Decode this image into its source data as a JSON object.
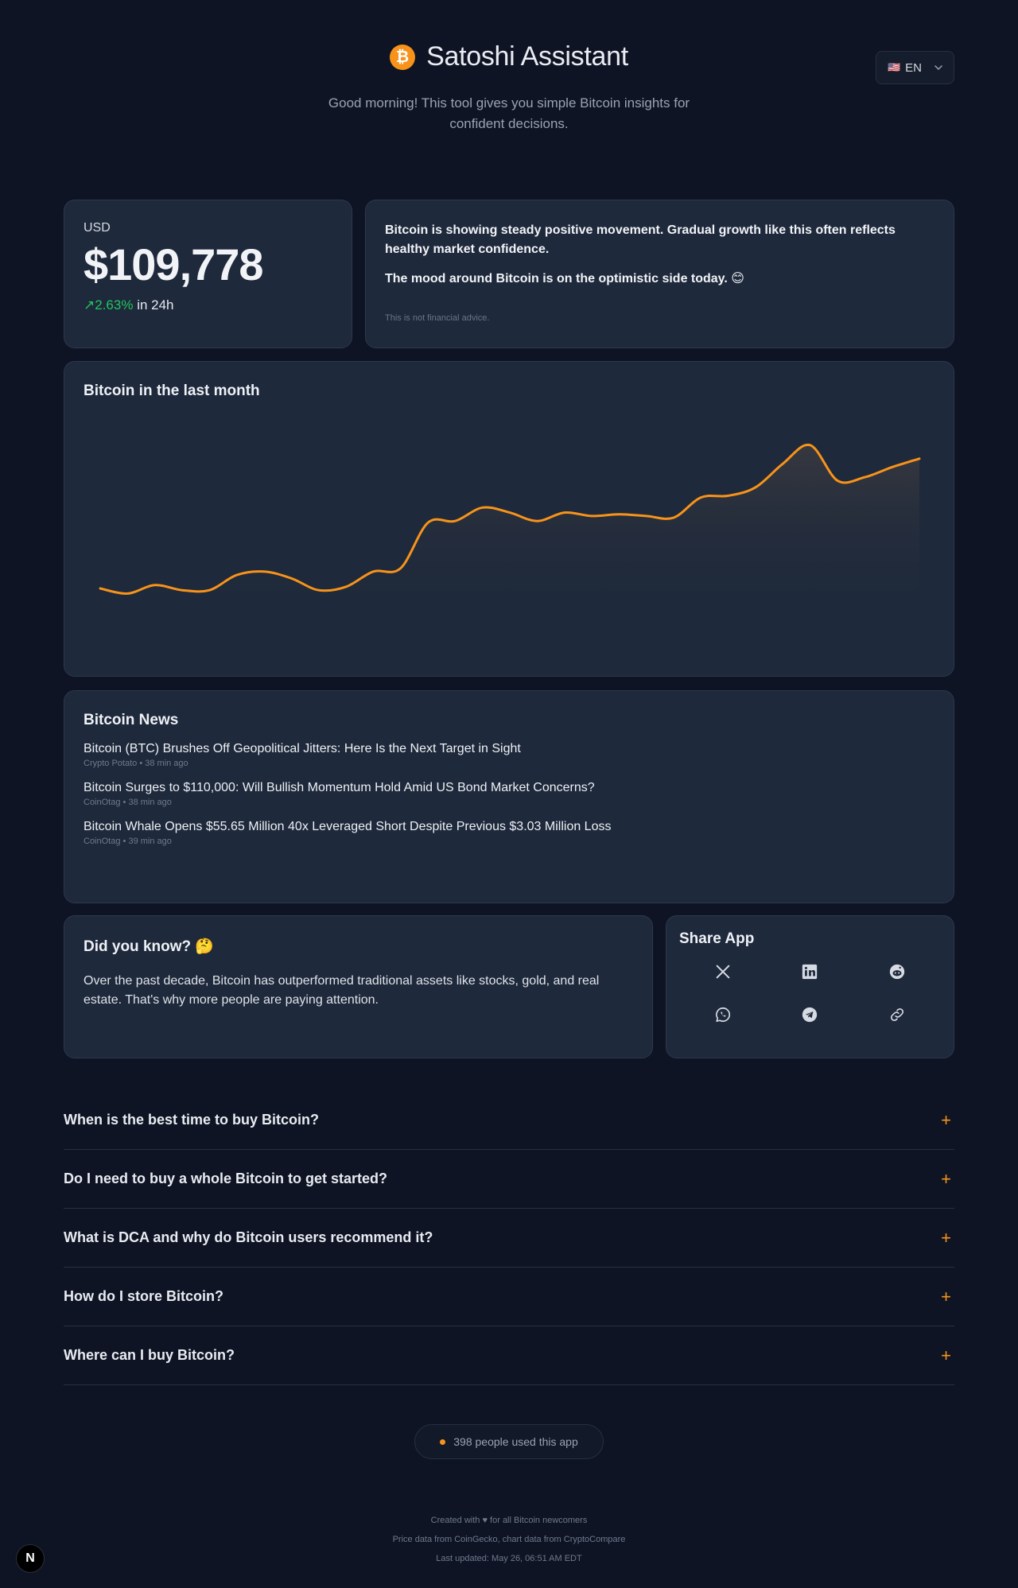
{
  "header": {
    "logo_glyph": "₿",
    "title": "Satoshi Assistant",
    "subtitle": "Good morning! This tool gives you simple Bitcoin insights for confident decisions.",
    "language": {
      "flag": "🇺🇸",
      "code": "EN"
    }
  },
  "price": {
    "currency": "USD",
    "value": "$109,778",
    "change": "↗2.63%",
    "period": "in 24h"
  },
  "insight": {
    "line1": "Bitcoin is showing steady positive movement. Gradual growth like this often reflects healthy market confidence.",
    "line2": "The mood around Bitcoin is on the optimistic side today. 😊",
    "disclaimer": "This is not financial advice."
  },
  "chart": {
    "title": "Bitcoin in the last month"
  },
  "chart_data": {
    "type": "area",
    "title": "Bitcoin in the last month",
    "line_color": "#f7931a",
    "values": [
      0.08,
      0.05,
      0.1,
      0.07,
      0.07,
      0.16,
      0.18,
      0.14,
      0.07,
      0.09,
      0.18,
      0.2,
      0.47,
      0.48,
      0.56,
      0.53,
      0.48,
      0.53,
      0.51,
      0.52,
      0.51,
      0.5,
      0.62,
      0.63,
      0.68,
      0.82,
      0.93,
      0.72,
      0.74,
      0.8,
      0.85
    ]
  },
  "news": {
    "title": "Bitcoin News",
    "items": [
      {
        "title": "Bitcoin (BTC) Brushes Off Geopolitical Jitters: Here Is the Next Target in Sight",
        "source": "Crypto Potato",
        "time": "38 min ago"
      },
      {
        "title": "Bitcoin Surges to $110,000: Will Bullish Momentum Hold Amid US Bond Market Concerns?",
        "source": "CoinOtag",
        "time": "38 min ago"
      },
      {
        "title": "Bitcoin Whale Opens $55.65 Million 40x Leveraged Short Despite Previous $3.03 Million Loss",
        "source": "CoinOtag",
        "time": "39 min ago"
      }
    ]
  },
  "fact": {
    "title": "Did you know? 🤔",
    "text": "Over the past decade, Bitcoin has outperformed traditional assets like stocks, gold, and real estate. That's why more people are paying attention."
  },
  "share": {
    "title": "Share App",
    "icons": [
      "x-icon",
      "linkedin-icon",
      "reddit-icon",
      "whatsapp-icon",
      "telegram-icon",
      "link-icon"
    ]
  },
  "faq": [
    {
      "question": "When is the best time to buy Bitcoin?",
      "toggle": "+"
    },
    {
      "question": "Do I need to buy a whole Bitcoin to get started?",
      "toggle": "+"
    },
    {
      "question": "What is DCA and why do Bitcoin users recommend it?",
      "toggle": "+"
    },
    {
      "question": "How do I store Bitcoin?",
      "toggle": "+"
    },
    {
      "question": "Where can I buy Bitcoin?",
      "toggle": "+"
    }
  ],
  "usage": {
    "text": "398 people used this app"
  },
  "footer": {
    "line1": "Created with ♥ for all Bitcoin newcomers",
    "line2": "Price data from CoinGecko, chart data from CryptoCompare",
    "line3": "Last updated: May 26, 06:51 AM EDT"
  },
  "badge": {
    "letter": "N"
  },
  "colors": {
    "accent": "#f7931a",
    "positive": "#22c55e",
    "background": "#0e1424",
    "card": "#1e293b"
  }
}
